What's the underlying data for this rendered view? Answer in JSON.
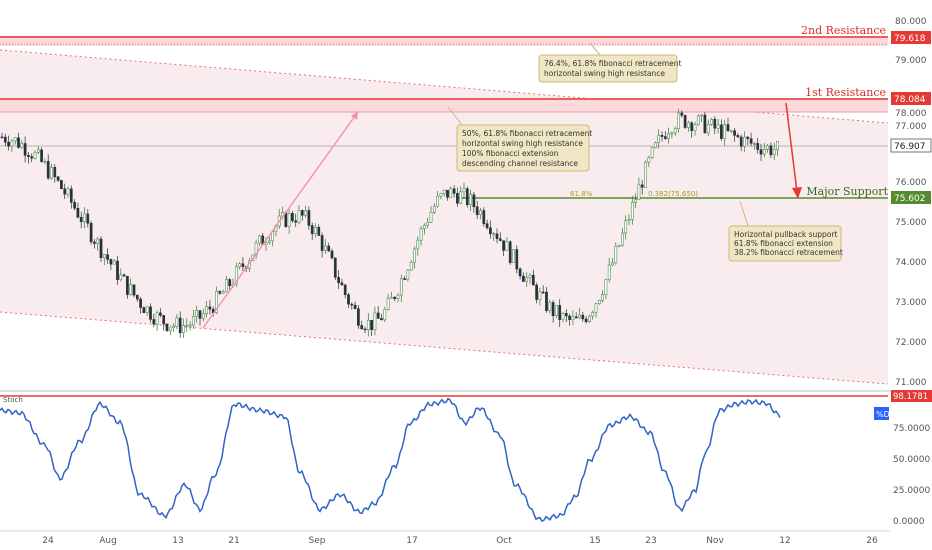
{
  "chart_data": [
    {
      "type": "candlestick",
      "price_axis": {
        "ylim": [
          70.8,
          80.2
        ],
        "ticks": [
          "80.000",
          "79.000",
          "78.000",
          "77.000",
          "76.000",
          "75.000",
          "74.000",
          "73.000",
          "72.000",
          "71.000"
        ]
      },
      "date_axis": {
        "labels": [
          "24",
          "Aug",
          "13",
          "21",
          "Sep",
          "17",
          "Oct",
          "15",
          "23",
          "Nov",
          "12",
          "26"
        ]
      },
      "levels": [
        {
          "name": "2nd Resistance",
          "value": 79.618,
          "label": "79.618",
          "color": "#e53935"
        },
        {
          "name": "1st Resistance",
          "value": 78.084,
          "label": "78.084",
          "color": "#e53935"
        },
        {
          "name": "Major Support",
          "value": 75.602,
          "label": "75.602",
          "color": "#558b2f"
        }
      ],
      "last_price": {
        "value": 76.907,
        "label": "76.907"
      },
      "fib_labels": {
        "left": "61.8%",
        "right": "0.382(75.650)"
      },
      "annotations": [
        {
          "lines": [
            "76.4%, 61.8% fibonacci retracement",
            "horizontal swing high resistance"
          ]
        },
        {
          "lines": [
            "50%, 61.8% fibonacci retracement",
            "horizontal swing high resistance",
            "100% fibonacci extension",
            "descending channel resistance"
          ]
        },
        {
          "lines": [
            "Horizontal pullback support",
            "61.8% fibonacci extension",
            "38.2% fibonacci retracement"
          ]
        }
      ],
      "key_points": [
        {
          "label": "start",
          "value": 76.9
        },
        {
          "label": "swing-low-aug",
          "value": 72.35
        },
        {
          "label": "swing-high-aug",
          "value": 75.0
        },
        {
          "label": "swing-low-sep",
          "value": 72.4
        },
        {
          "label": "swing-high-sep",
          "value": 75.55
        },
        {
          "label": "swing-low-oct",
          "value": 72.45
        },
        {
          "label": "swing-high-nov",
          "value": 77.3
        },
        {
          "label": "last",
          "value": 76.6
        }
      ]
    },
    {
      "type": "line",
      "title": "Stoch",
      "series": [
        {
          "name": "%D",
          "last_label": "98.1781"
        }
      ],
      "ylim": [
        0,
        100
      ],
      "ticks": [
        "75.0000",
        "50.0000",
        "25.0000",
        "0.0000"
      ],
      "colors": {
        "line": "#2f63c7",
        "level": "#e53935",
        "badge": "#2962ff"
      }
    }
  ]
}
